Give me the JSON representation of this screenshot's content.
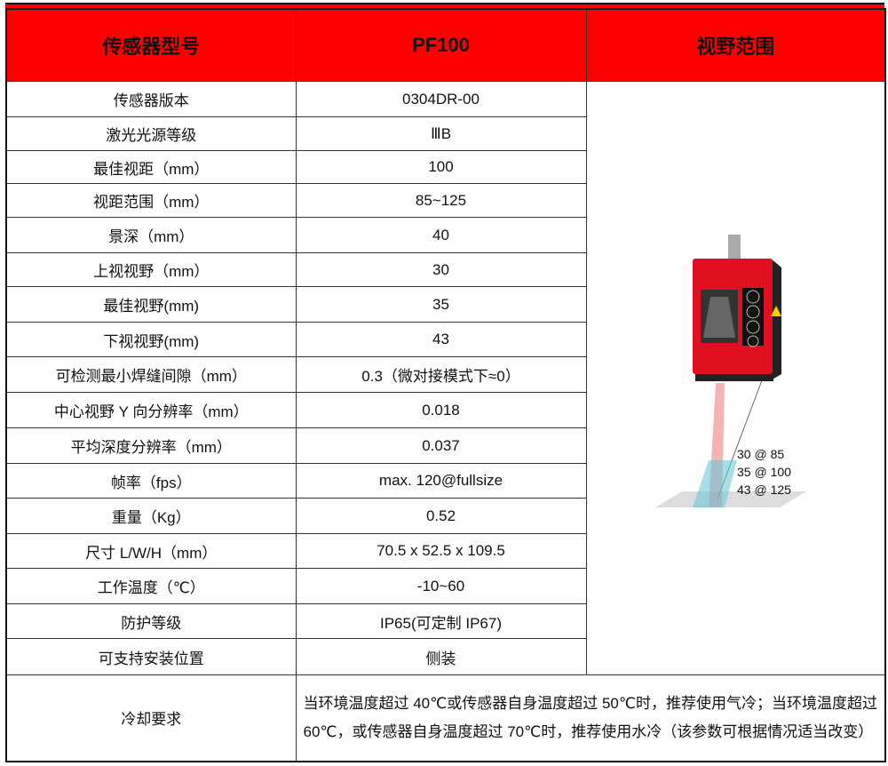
{
  "header": {
    "col1": "传感器型号",
    "col2": "PF100",
    "col3": "视野范围"
  },
  "rows": [
    {
      "label": "传感器版本",
      "value": "0304DR-00"
    },
    {
      "label": "激光光源等级",
      "value": "ⅢB"
    },
    {
      "label": "最佳视距（mm）",
      "value": "100"
    },
    {
      "label": "视距范围（mm）",
      "value": "85~125"
    },
    {
      "label": "景深（mm）",
      "value": "40"
    },
    {
      "label": "上视视野（mm）",
      "value": "30"
    },
    {
      "label": "最佳视野(mm)",
      "value": "35"
    },
    {
      "label": "下视视野(mm)",
      "value": "43"
    },
    {
      "label": "可检测最小焊缝间隙（mm）",
      "value": "0.3（微对接模式下≈0）"
    },
    {
      "label": "中心视野 Y 向分辨率（mm）",
      "value": "0.018"
    },
    {
      "label": "平均深度分辨率（mm）",
      "value": "0.037"
    },
    {
      "label": "帧率（fps）",
      "value": "max. 120@fullsize"
    },
    {
      "label": "重量（Kg）",
      "value": "0.52"
    },
    {
      "label": "尺寸 L/W/H（mm）",
      "value": "70.5 x 52.5 x 109.5"
    },
    {
      "label": "工作温度（℃）",
      "value": "-10~60"
    },
    {
      "label": "防护等级",
      "value": "IP65(可定制 IP67)"
    },
    {
      "label": "可支持安装位置",
      "value": "侧装"
    }
  ],
  "cooling": {
    "label": "冷却要求",
    "value": "当环境温度超过 40℃或传感器自身温度超过 50℃时，推荐使用气冷；当环境温度超过 60℃，或传感器自身温度超过 70℃时，推荐使用水冷（该参数可根据情况适当改变）"
  },
  "image": {
    "fov_labels": [
      "30 @ 85",
      "35 @ 100",
      "43 @ 125"
    ]
  },
  "colors": {
    "header_bg": "#ff0000",
    "sensor_body": "#e01020"
  }
}
